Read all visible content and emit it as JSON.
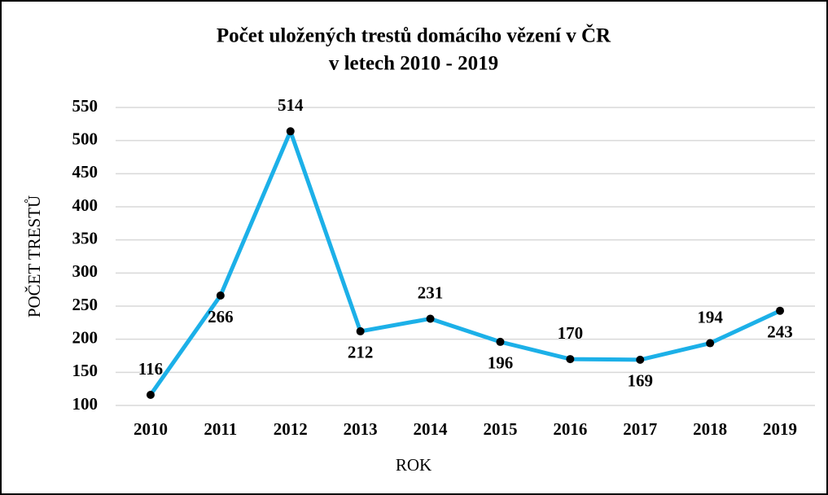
{
  "chart_data": {
    "type": "line",
    "title": "Počet uložených trestů domácího vězení v ČR",
    "subtitle": "v letech 2010 - 2019",
    "x_label": "ROK",
    "y_label": "POČET TRESTŮ",
    "categories": [
      "2010",
      "2011",
      "2012",
      "2013",
      "2014",
      "2015",
      "2016",
      "2017",
      "2018",
      "2019"
    ],
    "series": [
      {
        "name": "Počet trestů",
        "color": "#1cb0e8",
        "values": [
          116,
          266,
          514,
          212,
          231,
          196,
          170,
          169,
          194,
          243
        ]
      }
    ],
    "ylim": [
      100,
      550
    ],
    "yticks": [
      100,
      150,
      200,
      250,
      300,
      350,
      400,
      450,
      500,
      550
    ],
    "grid": true
  }
}
